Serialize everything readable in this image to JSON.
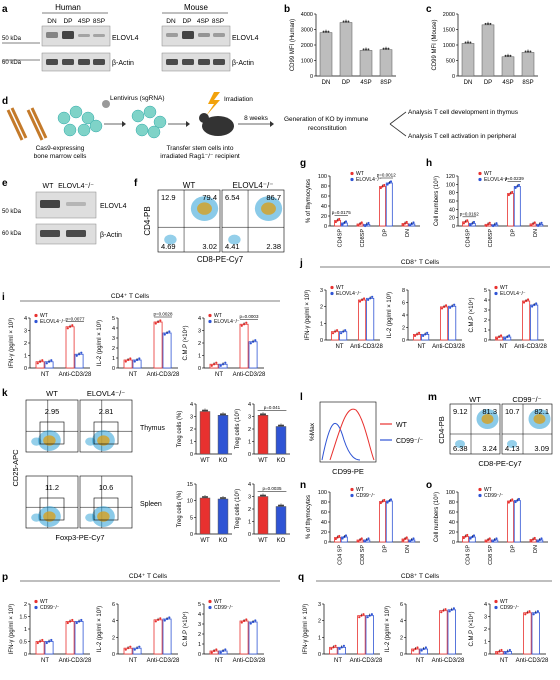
{
  "colors": {
    "wt": "#e8312f",
    "ko": "#2f54d4",
    "gray": "#bdbdbd",
    "blot": "#3a3a3a",
    "flow_hot": "#d6a020",
    "flow_cold": "#2a9fd6"
  },
  "panel_letters": {
    "a": "a",
    "b": "b",
    "c": "c",
    "d": "d",
    "e": "e",
    "f": "f",
    "g": "g",
    "h": "h",
    "i": "i",
    "j": "j",
    "k": "k",
    "l": "l",
    "m": "m",
    "n": "n",
    "o": "o",
    "p": "p",
    "q": "q"
  },
  "panel_a": {
    "human": "Human",
    "mouse": "Mouse",
    "lanes": [
      "DN",
      "DP",
      "4SP",
      "8SP"
    ],
    "mw50": "50 kDa",
    "mw60": "60 kDa",
    "band1": "ELOVL4",
    "band2": "β-Actin"
  },
  "panel_e": {
    "lanes": [
      "WT",
      "ELOVL4⁻/⁻"
    ],
    "mw50": "50 kDa",
    "mw60": "60 kDa",
    "band1": "ELOVL4",
    "band2": "β-Actin"
  },
  "panel_d": {
    "lentivirus": "Lentivirus (sgRNA)",
    "irradiation": "Irradiation",
    "cas9": "Cas9-expressing",
    "bone": "bone marrow cells",
    "transfer1": "Transfer stem cells into",
    "transfer2": "irradiated Rag1⁻/⁻ recipient",
    "weeks": "8 weeks",
    "generation1": "Generation of KO by immune",
    "generation2": "reconstitution",
    "analysis1": "Analysis T cell development in thymus",
    "analysis2": "Analysis T cell activation in peripheral"
  },
  "flow_f": {
    "title_wt": "WT",
    "title_ko": "ELOVL4⁻/⁻",
    "xlabel": "CD8-PE-Cy7",
    "ylabel": "CD4-PB",
    "wt": {
      "ul": "12.9",
      "ur": "79.4",
      "ll": "4.69",
      "lr": "3.02"
    },
    "ko": {
      "ul": "6.54",
      "ur": "86.7",
      "ll": "4.41",
      "lr": "2.38"
    }
  },
  "flow_m": {
    "title_wt": "WT",
    "title_ko": "CD99⁻/⁻",
    "xlabel": "CD8-PE-Cy7",
    "ylabel": "CD4-PB",
    "wt": {
      "ul": "9.12",
      "ur": "81.3",
      "ll": "6.38",
      "lr": "3.24"
    },
    "ko": {
      "ul": "10.7",
      "ur": "82.1",
      "ll": "4.13",
      "lr": "3.09"
    }
  },
  "flow_k": {
    "title_wt": "WT",
    "title_ko": "ELOVL4⁻/⁻",
    "xlabel": "Foxp3-PE-Cy7",
    "ylabel": "CD25-APC",
    "row1": {
      "wt": "2.95",
      "ko": "2.81",
      "tissue": "Thymus"
    },
    "row2": {
      "wt": "11.2",
      "ko": "10.6",
      "tissue": "Spleen"
    }
  },
  "hist_l": {
    "xlabel": "CD99-PE",
    "ylabel": "%Max",
    "legend": [
      "WT",
      "CD99⁻/⁻"
    ]
  },
  "j_header": "CD8⁺ T Cells",
  "i_header": "CD4⁺ T Cells",
  "p_header": "CD4⁺ T Cells",
  "q_header": "CD8⁺ T Cells",
  "chart_data": [
    {
      "id": "b",
      "type": "bar",
      "categories": [
        "DN",
        "DP",
        "4SP",
        "8SP"
      ],
      "values": [
        2800,
        3450,
        1650,
        1700
      ],
      "ylabel": "CD99 MFI (Human)",
      "ylim": [
        0,
        4000
      ],
      "yticks": [
        0,
        1000,
        2000,
        3000,
        4000
      ]
    },
    {
      "id": "c",
      "type": "bar",
      "categories": [
        "DN",
        "DP",
        "4SP",
        "8SP"
      ],
      "values": [
        1050,
        1650,
        620,
        760
      ],
      "ylabel": "CD99 MFI (Mouse)",
      "ylim": [
        0,
        2000
      ],
      "yticks": [
        0,
        500,
        1000,
        1500,
        2000
      ]
    },
    {
      "id": "g",
      "type": "bar",
      "categories": [
        "CD4SP",
        "CD8SP",
        "DP",
        "DN"
      ],
      "series": [
        {
          "name": "WT",
          "values": [
            11,
            4,
            79,
            5
          ]
        },
        {
          "name": "ELOVL4⁻/⁻",
          "values": [
            6,
            3,
            86,
            4
          ]
        }
      ],
      "ylabel": "% of thymocytes",
      "ylim": [
        0,
        100
      ],
      "yticks": [
        0,
        20,
        40,
        60,
        80,
        100
      ],
      "pvalues": [
        {
          "cat": 0,
          "text": "p=0.0175"
        },
        {
          "cat": 2,
          "text": "p=0.0012"
        }
      ]
    },
    {
      "id": "h",
      "type": "bar",
      "categories": [
        "CD4SP",
        "CD8SP",
        "DP",
        "DN"
      ],
      "series": [
        {
          "name": "WT",
          "values": [
            10,
            4,
            78,
            5
          ]
        },
        {
          "name": "ELOVL4⁻/⁻",
          "values": [
            6,
            3,
            95,
            4
          ]
        }
      ],
      "ylabel": "Cell numbers (10⁶)",
      "ylim": [
        0,
        120
      ],
      "yticks": [
        0,
        20,
        40,
        60,
        80,
        100,
        120
      ],
      "pvalues": [
        {
          "cat": 0,
          "text": "p=0.0162"
        },
        {
          "cat": 2,
          "text": "p=0.0239"
        }
      ]
    },
    {
      "id": "i1",
      "type": "bar",
      "categories": [
        "NT",
        "Anti-CD3/28"
      ],
      "series": [
        {
          "name": "WT",
          "values": [
            0.5,
            3.3
          ]
        },
        {
          "name": "ELOVL4⁻/⁻",
          "values": [
            0.5,
            1.1
          ]
        }
      ],
      "ylabel": "IFN-γ (pg/ml × 10³)",
      "ylim": [
        0,
        4
      ],
      "yticks": [
        0,
        1,
        2,
        3,
        4
      ],
      "pvalues": [
        {
          "cat": 1,
          "text": "p=0.0077"
        }
      ]
    },
    {
      "id": "i2",
      "type": "bar",
      "categories": [
        "NT",
        "Anti-CD3/28"
      ],
      "series": [
        {
          "name": "WT",
          "values": [
            0.8,
            4.6
          ]
        },
        {
          "name": "ELOVL4⁻/⁻",
          "values": [
            0.8,
            3.5
          ]
        }
      ],
      "ylabel": "IL-2 (pg/ml × 10³)",
      "ylim": [
        0,
        5
      ],
      "yticks": [
        0,
        1,
        2,
        3,
        4,
        5
      ],
      "pvalues": [
        {
          "cat": 1,
          "text": "p=0.0028"
        }
      ]
    },
    {
      "id": "i3",
      "type": "bar",
      "categories": [
        "NT",
        "Anti-CD3/28"
      ],
      "series": [
        {
          "name": "WT",
          "values": [
            0.3,
            3.5
          ]
        },
        {
          "name": "ELOVL4⁻/⁻",
          "values": [
            0.3,
            2.1
          ]
        }
      ],
      "ylabel": "C.M.P (×10⁴)",
      "ylim": [
        0,
        4
      ],
      "yticks": [
        0,
        1,
        2,
        3,
        4
      ],
      "pvalues": [
        {
          "cat": 1,
          "text": "p=0.0003"
        }
      ]
    },
    {
      "id": "j1",
      "type": "bar",
      "categories": [
        "NT",
        "Anti-CD3/28"
      ],
      "series": [
        {
          "name": "WT",
          "values": [
            0.5,
            2.4
          ]
        },
        {
          "name": "ELOVL4⁻/⁻",
          "values": [
            0.5,
            2.5
          ]
        }
      ],
      "ylabel": "IFN-γ (pg/ml × 10³)",
      "ylim": [
        0,
        3
      ],
      "yticks": [
        0,
        1,
        2,
        3
      ]
    },
    {
      "id": "j2",
      "type": "bar",
      "categories": [
        "NT",
        "Anti-CD3/28"
      ],
      "series": [
        {
          "name": "WT",
          "values": [
            0.9,
            5.3
          ]
        },
        {
          "name": "ELOVL4⁻/⁻",
          "values": [
            0.9,
            5.4
          ]
        }
      ],
      "ylabel": "IL-2 (pg/ml × 10³)",
      "ylim": [
        0,
        8
      ],
      "yticks": [
        0,
        2,
        4,
        6,
        8
      ]
    },
    {
      "id": "j3",
      "type": "bar",
      "categories": [
        "NT",
        "Anti-CD3/28"
      ],
      "series": [
        {
          "name": "WT",
          "values": [
            0.3,
            3.9
          ]
        },
        {
          "name": "ELOVL4⁻/⁻",
          "values": [
            0.3,
            3.5
          ]
        }
      ],
      "ylabel": "C.M.P (×10⁴)",
      "ylim": [
        0,
        5
      ],
      "yticks": [
        0,
        1,
        2,
        3,
        4,
        5
      ]
    },
    {
      "id": "k1",
      "type": "bar",
      "categories": [
        "WT",
        "KO"
      ],
      "values": [
        3.4,
        3.1
      ],
      "ylabel": "Treg cells (%)",
      "ylim": [
        0,
        4
      ],
      "yticks": [
        0,
        1,
        2,
        3,
        4
      ]
    },
    {
      "id": "k2",
      "type": "bar",
      "categories": [
        "WT",
        "KO"
      ],
      "values": [
        3.1,
        2.2
      ],
      "ylabel": "Treg cells (10⁶)",
      "ylim": [
        0,
        4
      ],
      "yticks": [
        0,
        1,
        2,
        3,
        4
      ],
      "pvalues": [
        {
          "cat": 0,
          "text": "p=0.041"
        }
      ]
    },
    {
      "id": "k3",
      "type": "bar",
      "categories": [
        "WT",
        "KO"
      ],
      "values": [
        10.8,
        10.5
      ],
      "ylabel": "Treg cells (%)",
      "ylim": [
        0,
        15
      ],
      "yticks": [
        0,
        5,
        10,
        15
      ]
    },
    {
      "id": "k4",
      "type": "bar",
      "categories": [
        "WT",
        "KO"
      ],
      "values": [
        3.0,
        2.2
      ],
      "ylabel": "Treg cells (10⁶)",
      "ylim": [
        0,
        4
      ],
      "yticks": [
        0,
        1,
        2,
        3,
        4
      ],
      "pvalues": [
        {
          "cat": 0,
          "text": "p=0.0035"
        }
      ]
    },
    {
      "id": "n",
      "type": "bar",
      "categories": [
        "CD4 SP",
        "CD8 SP",
        "DP",
        "DN"
      ],
      "series": [
        {
          "name": "WT",
          "values": [
            9,
            4,
            81,
            6
          ]
        },
        {
          "name": "CD99⁻/⁻",
          "values": [
            10,
            4,
            82,
            4
          ]
        }
      ],
      "ylabel": "% of thymocytes",
      "ylim": [
        0,
        100
      ],
      "yticks": [
        0,
        20,
        40,
        60,
        80,
        100
      ]
    },
    {
      "id": "o",
      "type": "bar",
      "categories": [
        "CD4 SP",
        "CD8 SP",
        "DP",
        "DN"
      ],
      "series": [
        {
          "name": "WT",
          "values": [
            11,
            4,
            82,
            5
          ]
        },
        {
          "name": "CD99⁻/⁻",
          "values": [
            10,
            4,
            83,
            4
          ]
        }
      ],
      "ylabel": "Cell numbers (10⁶)",
      "ylim": [
        0,
        100
      ],
      "yticks": [
        0,
        20,
        40,
        60,
        80,
        100
      ]
    },
    {
      "id": "p1",
      "type": "bar",
      "categories": [
        "NT",
        "Anti-CD3/28"
      ],
      "series": [
        {
          "name": "WT",
          "values": [
            0.5,
            1.3
          ]
        },
        {
          "name": "CD99⁻/⁻",
          "values": [
            0.5,
            1.3
          ]
        }
      ],
      "ylabel": "IFN-γ (pg/ml × 10³)",
      "ylim": [
        0,
        2
      ],
      "yticks": [
        0,
        0.5,
        1.0,
        1.5,
        2.0
      ]
    },
    {
      "id": "p2",
      "type": "bar",
      "categories": [
        "NT",
        "Anti-CD3/28"
      ],
      "series": [
        {
          "name": "WT",
          "values": [
            0.7,
            4.1
          ]
        },
        {
          "name": "CD99⁻/⁻",
          "values": [
            0.7,
            4.2
          ]
        }
      ],
      "ylabel": "IL-2 (pg/ml × 10³)",
      "ylim": [
        0,
        6
      ],
      "yticks": [
        0,
        2,
        4,
        6
      ]
    },
    {
      "id": "p3",
      "type": "bar",
      "categories": [
        "NT",
        "Anti-CD3/28"
      ],
      "series": [
        {
          "name": "WT",
          "values": [
            0.3,
            3.3
          ]
        },
        {
          "name": "CD99⁻/⁻",
          "values": [
            0.3,
            3.2
          ]
        }
      ],
      "ylabel": "C.M.P (×10⁴)",
      "ylim": [
        0,
        5
      ],
      "yticks": [
        0,
        1,
        2,
        3,
        4,
        5
      ]
    },
    {
      "id": "q1",
      "type": "bar",
      "categories": [
        "NT",
        "Anti-CD3/28"
      ],
      "series": [
        {
          "name": "WT",
          "values": [
            0.4,
            2.3
          ]
        },
        {
          "name": "CD99⁻/⁻",
          "values": [
            0.4,
            2.3
          ]
        }
      ],
      "ylabel": "IFN-γ (pg/ml × 10³)",
      "ylim": [
        0,
        3
      ],
      "yticks": [
        0,
        1,
        2,
        3
      ]
    },
    {
      "id": "q2",
      "type": "bar",
      "categories": [
        "NT",
        "Anti-CD3/28"
      ],
      "series": [
        {
          "name": "WT",
          "values": [
            0.6,
            5.2
          ]
        },
        {
          "name": "CD99⁻/⁻",
          "values": [
            0.6,
            5.3
          ]
        }
      ],
      "ylabel": "IL-2 (pg/ml × 10³)",
      "ylim": [
        0,
        6
      ],
      "yticks": [
        0,
        2,
        4,
        6
      ]
    },
    {
      "id": "q3",
      "type": "bar",
      "categories": [
        "NT",
        "Anti-CD3/28"
      ],
      "series": [
        {
          "name": "WT",
          "values": [
            0.2,
            3.3
          ]
        },
        {
          "name": "CD99⁻/⁻",
          "values": [
            0.2,
            3.3
          ]
        }
      ],
      "ylabel": "C.M.P (×10⁴)",
      "ylim": [
        0,
        4
      ],
      "yticks": [
        0,
        1,
        2,
        3,
        4
      ]
    }
  ]
}
